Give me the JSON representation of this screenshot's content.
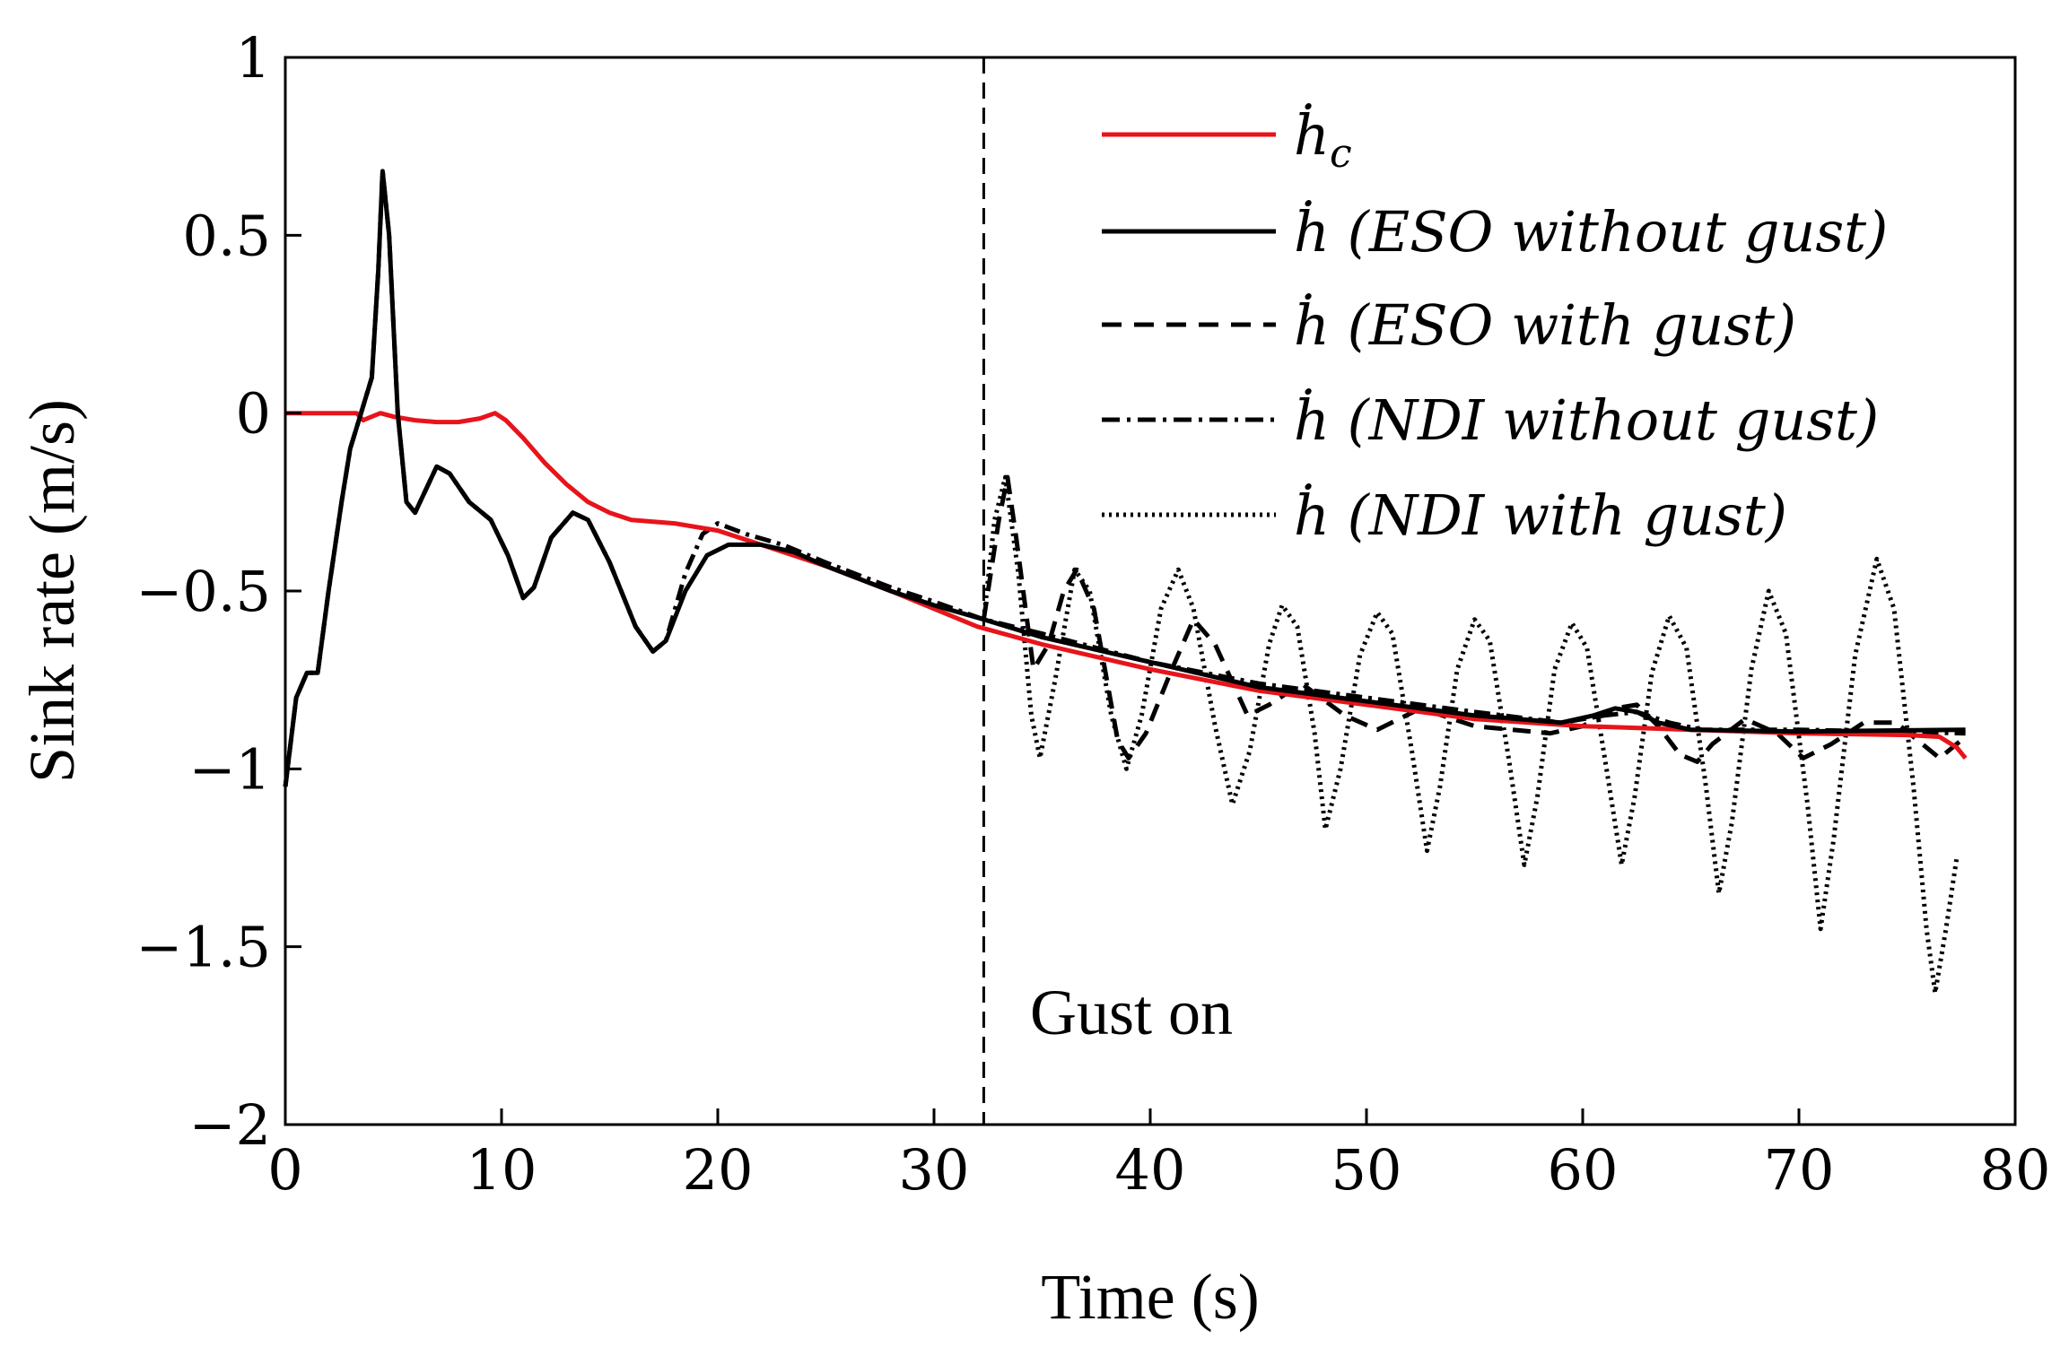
{
  "chart_data": {
    "type": "line",
    "title": "",
    "xlabel": "Time (s)",
    "ylabel": "Sink rate (m/s)",
    "xlim": [
      0,
      80
    ],
    "ylim": [
      -2,
      1
    ],
    "xticks": [
      0,
      10,
      20,
      30,
      40,
      50,
      60,
      70,
      80
    ],
    "yticks": [
      1,
      0.5,
      0,
      -0.5,
      -1,
      -1.5,
      -2
    ],
    "xtick_labels": [
      "0",
      "10",
      "20",
      "30",
      "40",
      "50",
      "60",
      "70",
      "80"
    ],
    "ytick_labels": [
      "1",
      "0.5",
      "0",
      "−0.5",
      "−1",
      "−1.5",
      "−2"
    ],
    "grid": false,
    "legend_position": "top-right",
    "gust_onset": 32.3,
    "annotation": "Gust on",
    "series": [
      {
        "name": "ḣ_c",
        "color": "#e8141b",
        "style": "solid",
        "points": [
          [
            0,
            0
          ],
          [
            3.3,
            0
          ],
          [
            3.6,
            -0.02
          ],
          [
            4,
            -0.01
          ],
          [
            4.4,
            0
          ],
          [
            5,
            -0.01
          ],
          [
            6,
            -0.02
          ],
          [
            7,
            -0.025
          ],
          [
            8,
            -0.025
          ],
          [
            9,
            -0.015
          ],
          [
            9.7,
            0
          ],
          [
            10.2,
            -0.02
          ],
          [
            11,
            -0.07
          ],
          [
            12,
            -0.14
          ],
          [
            13,
            -0.2
          ],
          [
            14,
            -0.25
          ],
          [
            15,
            -0.28
          ],
          [
            16,
            -0.3
          ],
          [
            18,
            -0.31
          ],
          [
            20,
            -0.33
          ],
          [
            22,
            -0.37
          ],
          [
            25,
            -0.43
          ],
          [
            28,
            -0.5
          ],
          [
            30,
            -0.55
          ],
          [
            32,
            -0.6
          ],
          [
            35,
            -0.65
          ],
          [
            40,
            -0.72
          ],
          [
            45,
            -0.78
          ],
          [
            50,
            -0.82
          ],
          [
            55,
            -0.86
          ],
          [
            60,
            -0.88
          ],
          [
            65,
            -0.89
          ],
          [
            70,
            -0.9
          ],
          [
            75,
            -0.905
          ],
          [
            76.5,
            -0.91
          ],
          [
            77.3,
            -0.94
          ],
          [
            77.7,
            -0.97
          ]
        ]
      },
      {
        "name": "ḣ (ESO without gust)",
        "color": "#000000",
        "style": "solid",
        "points": [
          [
            0,
            -1.05
          ],
          [
            0.5,
            -0.8
          ],
          [
            1,
            -0.73
          ],
          [
            1.5,
            -0.73
          ],
          [
            2,
            -0.5
          ],
          [
            2.6,
            -0.25
          ],
          [
            3,
            -0.1
          ],
          [
            3.5,
            0
          ],
          [
            4,
            0.1
          ],
          [
            4.3,
            0.4
          ],
          [
            4.5,
            0.68
          ],
          [
            4.8,
            0.5
          ],
          [
            5.2,
            0
          ],
          [
            5.6,
            -0.25
          ],
          [
            6,
            -0.28
          ],
          [
            7,
            -0.15
          ],
          [
            7.6,
            -0.17
          ],
          [
            8.5,
            -0.25
          ],
          [
            9.5,
            -0.3
          ],
          [
            10.3,
            -0.4
          ],
          [
            11,
            -0.52
          ],
          [
            11.5,
            -0.49
          ],
          [
            12.3,
            -0.35
          ],
          [
            13.3,
            -0.28
          ],
          [
            14,
            -0.3
          ],
          [
            15,
            -0.42
          ],
          [
            16.2,
            -0.6
          ],
          [
            17,
            -0.67
          ],
          [
            17.6,
            -0.64
          ],
          [
            18.5,
            -0.5
          ],
          [
            19.5,
            -0.4
          ],
          [
            20.5,
            -0.37
          ],
          [
            22,
            -0.37
          ],
          [
            23.5,
            -0.39
          ],
          [
            25,
            -0.43
          ],
          [
            28,
            -0.5
          ],
          [
            30,
            -0.54
          ],
          [
            32.3,
            -0.58
          ],
          [
            35,
            -0.63
          ],
          [
            40,
            -0.7
          ],
          [
            45,
            -0.77
          ],
          [
            50,
            -0.81
          ],
          [
            55,
            -0.85
          ],
          [
            59,
            -0.87
          ],
          [
            60.5,
            -0.85
          ],
          [
            61.5,
            -0.83
          ],
          [
            62.5,
            -0.84
          ],
          [
            63.5,
            -0.87
          ],
          [
            65,
            -0.89
          ],
          [
            70,
            -0.895
          ],
          [
            77.7,
            -0.89
          ]
        ]
      },
      {
        "name": "ḣ (ESO with gust)",
        "color": "#000000",
        "style": "dashed",
        "points": [
          [
            32.3,
            -0.58
          ],
          [
            33,
            -0.3
          ],
          [
            33.4,
            -0.18
          ],
          [
            33.8,
            -0.35
          ],
          [
            34.6,
            -0.72
          ],
          [
            35.3,
            -0.65
          ],
          [
            36,
            -0.5
          ],
          [
            36.6,
            -0.44
          ],
          [
            37.4,
            -0.55
          ],
          [
            38.5,
            -0.92
          ],
          [
            39,
            -0.97
          ],
          [
            39.8,
            -0.9
          ],
          [
            41,
            -0.72
          ],
          [
            42,
            -0.58
          ],
          [
            43,
            -0.65
          ],
          [
            44.5,
            -0.85
          ],
          [
            45.5,
            -0.82
          ],
          [
            47,
            -0.76
          ],
          [
            49,
            -0.85
          ],
          [
            50.5,
            -0.89
          ],
          [
            52.5,
            -0.83
          ],
          [
            55,
            -0.88
          ],
          [
            58.5,
            -0.9
          ],
          [
            60,
            -0.88
          ],
          [
            61.5,
            -0.83
          ],
          [
            62.5,
            -0.82
          ],
          [
            63.5,
            -0.88
          ],
          [
            64.5,
            -0.96
          ],
          [
            65.3,
            -0.98
          ],
          [
            66,
            -0.93
          ],
          [
            67.5,
            -0.86
          ],
          [
            69,
            -0.9
          ],
          [
            70.2,
            -0.97
          ],
          [
            71.5,
            -0.93
          ],
          [
            73,
            -0.87
          ],
          [
            74.5,
            -0.87
          ],
          [
            75.5,
            -0.92
          ],
          [
            76.5,
            -0.97
          ],
          [
            77.7,
            -0.91
          ]
        ]
      },
      {
        "name": "ḣ (NDI without gust)",
        "color": "#000000",
        "style": "dashdot",
        "points": [
          [
            0,
            -1.05
          ],
          [
            0.5,
            -0.8
          ],
          [
            1,
            -0.73
          ],
          [
            1.5,
            -0.73
          ],
          [
            2,
            -0.5
          ],
          [
            2.6,
            -0.25
          ],
          [
            3,
            -0.1
          ],
          [
            3.5,
            0
          ],
          [
            4,
            0.1
          ],
          [
            4.3,
            0.4
          ],
          [
            4.5,
            0.68
          ],
          [
            4.8,
            0.5
          ],
          [
            5.2,
            0
          ],
          [
            5.6,
            -0.25
          ],
          [
            6,
            -0.28
          ],
          [
            7,
            -0.15
          ],
          [
            7.6,
            -0.17
          ],
          [
            8.5,
            -0.25
          ],
          [
            9.5,
            -0.3
          ],
          [
            10.3,
            -0.4
          ],
          [
            11,
            -0.52
          ],
          [
            11.5,
            -0.49
          ],
          [
            12.3,
            -0.35
          ],
          [
            13.3,
            -0.28
          ],
          [
            14,
            -0.3
          ],
          [
            15,
            -0.42
          ],
          [
            16.2,
            -0.6
          ],
          [
            17,
            -0.67
          ],
          [
            17.6,
            -0.64
          ],
          [
            18.5,
            -0.45
          ],
          [
            19.3,
            -0.34
          ],
          [
            20,
            -0.31
          ],
          [
            21.3,
            -0.34
          ],
          [
            23,
            -0.37
          ],
          [
            25,
            -0.42
          ],
          [
            28,
            -0.49
          ],
          [
            30,
            -0.53
          ],
          [
            32.3,
            -0.58
          ],
          [
            35,
            -0.62
          ],
          [
            40,
            -0.7
          ],
          [
            45,
            -0.76
          ],
          [
            50,
            -0.8
          ],
          [
            55,
            -0.84
          ],
          [
            59,
            -0.87
          ],
          [
            61,
            -0.85
          ],
          [
            62.5,
            -0.84
          ],
          [
            64,
            -0.87
          ],
          [
            65.5,
            -0.89
          ],
          [
            70,
            -0.89
          ],
          [
            77.7,
            -0.9
          ]
        ]
      },
      {
        "name": "ḣ (NDI with gust)",
        "color": "#000000",
        "style": "dotted",
        "points": [
          [
            32.3,
            -0.58
          ],
          [
            32.8,
            -0.3
          ],
          [
            33.3,
            -0.18
          ],
          [
            33.9,
            -0.45
          ],
          [
            34.5,
            -0.85
          ],
          [
            34.9,
            -0.97
          ],
          [
            35.6,
            -0.75
          ],
          [
            36.5,
            -0.44
          ],
          [
            37.2,
            -0.5
          ],
          [
            38.2,
            -0.85
          ],
          [
            38.9,
            -1.0
          ],
          [
            39.6,
            -0.85
          ],
          [
            40.5,
            -0.55
          ],
          [
            41.3,
            -0.44
          ],
          [
            42,
            -0.55
          ],
          [
            43,
            -0.88
          ],
          [
            43.8,
            -1.1
          ],
          [
            44.6,
            -0.95
          ],
          [
            45.5,
            -0.65
          ],
          [
            46.1,
            -0.54
          ],
          [
            46.8,
            -0.6
          ],
          [
            47.6,
            -0.9
          ],
          [
            48.1,
            -1.17
          ],
          [
            48.8,
            -1.0
          ],
          [
            49.7,
            -0.68
          ],
          [
            50.5,
            -0.56
          ],
          [
            51.2,
            -0.62
          ],
          [
            52.1,
            -0.95
          ],
          [
            52.8,
            -1.23
          ],
          [
            53.4,
            -1.05
          ],
          [
            54.2,
            -0.72
          ],
          [
            55,
            -0.58
          ],
          [
            55.7,
            -0.64
          ],
          [
            56.6,
            -0.98
          ],
          [
            57.3,
            -1.27
          ],
          [
            57.9,
            -1.08
          ],
          [
            58.7,
            -0.72
          ],
          [
            59.5,
            -0.59
          ],
          [
            60.2,
            -0.66
          ],
          [
            61.1,
            -1.0
          ],
          [
            61.8,
            -1.27
          ],
          [
            62.4,
            -1.08
          ],
          [
            63.2,
            -0.73
          ],
          [
            64,
            -0.57
          ],
          [
            64.8,
            -0.66
          ],
          [
            65.7,
            -1.05
          ],
          [
            66.3,
            -1.35
          ],
          [
            66.9,
            -1.15
          ],
          [
            67.8,
            -0.72
          ],
          [
            68.6,
            -0.5
          ],
          [
            69.4,
            -0.62
          ],
          [
            70.4,
            -1.1
          ],
          [
            71,
            -1.45
          ],
          [
            71.6,
            -1.2
          ],
          [
            72.6,
            -0.68
          ],
          [
            73.6,
            -0.41
          ],
          [
            74.4,
            -0.55
          ],
          [
            75.3,
            -1.05
          ],
          [
            75.9,
            -1.45
          ],
          [
            76.3,
            -1.63
          ],
          [
            76.8,
            -1.45
          ],
          [
            77.3,
            -1.25
          ]
        ]
      }
    ]
  },
  "legend": [
    {
      "label": "ḣ_c",
      "label_main": "ḣ",
      "label_sub": "c"
    },
    {
      "label": "ḣ (ESO without gust)",
      "label_main": "ḣ (ESO without gust)"
    },
    {
      "label": "ḣ (ESO with gust)",
      "label_main": "ḣ (ESO with gust)"
    },
    {
      "label": "ḣ (NDI without gust)",
      "label_main": "ḣ (NDI without gust)"
    },
    {
      "label": "ḣ (NDI with gust)",
      "label_main": "ḣ (NDI with gust)"
    }
  ]
}
